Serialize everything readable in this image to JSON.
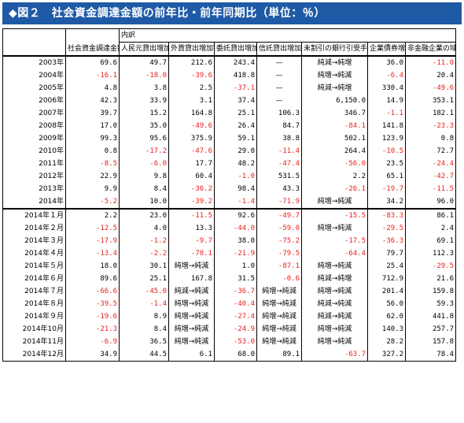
{
  "title": "◆図２　社会資金調達金額の前年比・前年同期比（単位：％）",
  "breakdown_label": "内訳",
  "columns": [
    "社会資金調達金額",
    "人民元貸出増加額",
    "外貨貸出増加額",
    "委託貸出増加額",
    "信託貸出増加額",
    "未割引の銀行引受手形増加額",
    "企業債券増加額",
    "非金融企業の域内株式発行増加額"
  ],
  "rows_annual": [
    {
      "label": "2003年",
      "cells": [
        "69.6",
        "49.7",
        "212.6",
        "243.4",
        "—",
        "純減→純増",
        "36.0",
        "-11.0"
      ]
    },
    {
      "label": "2004年",
      "cells": [
        "-16.1",
        "-18.0",
        "-39.6",
        "418.8",
        "—",
        "純増→純減",
        "-6.4",
        "20.4"
      ]
    },
    {
      "label": "2005年",
      "cells": [
        "4.8",
        "3.8",
        "2.5",
        "-37.1",
        "—",
        "純減→純増",
        "330.4",
        "-49.6"
      ]
    },
    {
      "label": "2006年",
      "cells": [
        "42.3",
        "33.9",
        "3.1",
        "37.4",
        "—",
        "6,150.0",
        "14.9",
        "353.1"
      ]
    },
    {
      "label": "2007年",
      "cells": [
        "39.7",
        "15.2",
        "164.8",
        "25.1",
        "106.3",
        "346.7",
        "-1.1",
        "182.1"
      ]
    },
    {
      "label": "2008年",
      "cells": [
        "17.0",
        "35.0",
        "-49.6",
        "26.4",
        "84.7",
        "-84.1",
        "141.8",
        "-23.3"
      ]
    },
    {
      "label": "2009年",
      "cells": [
        "99.3",
        "95.6",
        "375.9",
        "59.1",
        "38.8",
        "502.1",
        "123.9",
        "0.8"
      ]
    },
    {
      "label": "2010年",
      "cells": [
        "0.8",
        "-17.2",
        "-47.6",
        "29.0",
        "-11.4",
        "264.4",
        "-10.5",
        "72.7"
      ]
    },
    {
      "label": "2011年",
      "cells": [
        "-8.5",
        "-6.0",
        "17.7",
        "48.2",
        "-47.4",
        "-56.0",
        "23.5",
        "-24.4"
      ]
    },
    {
      "label": "2012年",
      "cells": [
        "22.9",
        "9.8",
        "60.4",
        "-1.0",
        "531.5",
        "2.2",
        "65.1",
        "-42.7"
      ]
    },
    {
      "label": "2013年",
      "cells": [
        "9.9",
        "8.4",
        "-36.2",
        "98.4",
        "43.3",
        "-26.1",
        "-19.7",
        "-11.5"
      ]
    },
    {
      "label": "2014年",
      "cells": [
        "-5.2",
        "10.0",
        "-39.2",
        "-1.4",
        "-71.9",
        "純増→純減",
        "34.2",
        "96.0"
      ]
    }
  ],
  "rows_monthly": [
    {
      "label": "2014年１月",
      "cells": [
        "2.2",
        "23.0",
        "-11.5",
        "92.6",
        "-49.7",
        "-15.5",
        "-83.3",
        "86.1"
      ]
    },
    {
      "label": "2014年２月",
      "cells": [
        "-12.5",
        "4.0",
        "13.3",
        "-44.0",
        "-59.0",
        "純増→純減",
        "-29.5",
        "2.4"
      ]
    },
    {
      "label": "2014年３月",
      "cells": [
        "-17.9",
        "-1.2",
        "-9.7",
        "38.0",
        "-75.2",
        "-17.5",
        "-36.3",
        "69.1"
      ]
    },
    {
      "label": "2014年４月",
      "cells": [
        "-13.4",
        "-2.2",
        "-78.1",
        "-21.9",
        "-79.5",
        "-64.4",
        "79.7",
        "112.3"
      ]
    },
    {
      "label": "2014年５月",
      "cells": [
        "18.0",
        "30.1",
        "純増→純減",
        "1.0",
        "-87.1",
        "純増→純減",
        "25.4",
        "-29.5"
      ]
    },
    {
      "label": "2014年６月",
      "cells": [
        "89.6",
        "25.1",
        "167.8",
        "31.5",
        "-0.6",
        "純減→純増",
        "712.9",
        "21.6"
      ]
    },
    {
      "label": "2014年７月",
      "cells": [
        "-66.6",
        "-45.0",
        "純減→純減",
        "-36.7",
        "純増→純減",
        "純増→純減",
        "201.4",
        "159.8"
      ]
    },
    {
      "label": "2014年８月",
      "cells": [
        "-39.5",
        "-1.4",
        "純増→純減",
        "-40.4",
        "純増→純減",
        "純減→純減",
        "56.0",
        "59.3"
      ]
    },
    {
      "label": "2014年９月",
      "cells": [
        "-19.6",
        "8.9",
        "純増→純減",
        "-27.4",
        "純増→純減",
        "純減→純減",
        "62.0",
        "441.8"
      ]
    },
    {
      "label": "2014年10月",
      "cells": [
        "-21.3",
        "8.4",
        "純増→純減",
        "-24.9",
        "純増→純減",
        "純増→純減",
        "140.3",
        "257.7"
      ]
    },
    {
      "label": "2014年11月",
      "cells": [
        "-6.9",
        "36.5",
        "純増→純減",
        "-53.0",
        "純増→純減",
        "純増→純減",
        "28.2",
        "157.8"
      ]
    },
    {
      "label": "2014年12月",
      "cells": [
        "34.9",
        "44.5",
        "6.1",
        "68.0",
        "89.1",
        "-63.7",
        "327.2",
        "78.4"
      ]
    }
  ],
  "colors": {
    "title_bg": "#1f5aa6",
    "negative": "#e8231d",
    "text": "#000000"
  }
}
